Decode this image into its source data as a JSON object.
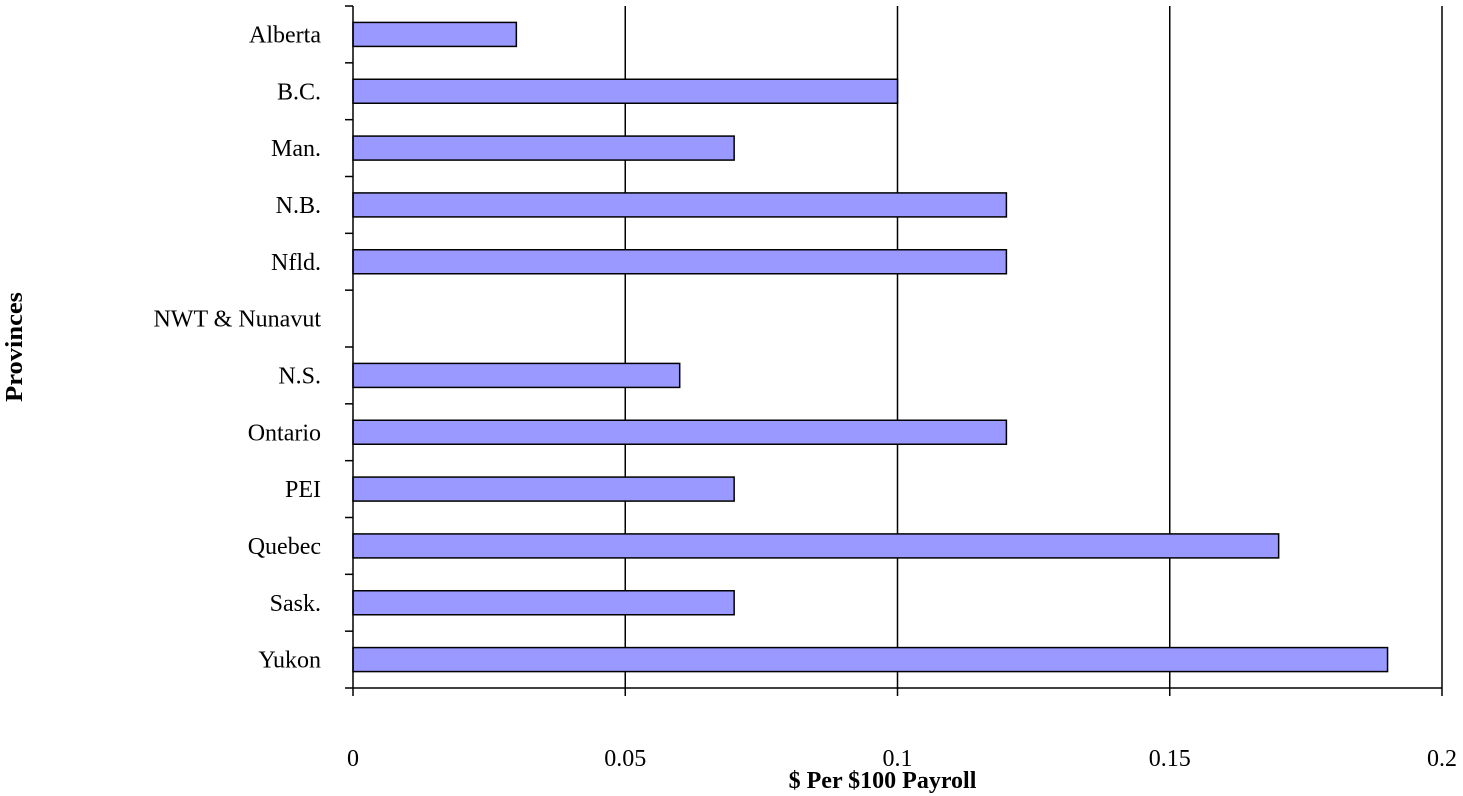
{
  "chart_data": {
    "type": "bar",
    "orientation": "horizontal",
    "categories": [
      "Alberta",
      "B.C.",
      "Man.",
      "N.B.",
      "Nfld.",
      "NWT & Nunavut",
      "N.S.",
      "Ontario",
      "PEI",
      "Quebec",
      "Sask.",
      "Yukon"
    ],
    "values": [
      0.03,
      0.1,
      0.07,
      0.12,
      0.12,
      null,
      0.06,
      0.12,
      0.07,
      0.17,
      0.07,
      0.19
    ],
    "xlabel": "$ Per $100 Payroll",
    "ylabel": "Provinces",
    "xlim": [
      0,
      0.2
    ],
    "xticks": [
      0,
      0.05,
      0.1,
      0.15,
      0.2
    ],
    "xtick_labels": [
      "0",
      "0.05",
      "0.1",
      "0.15",
      "0.2"
    ],
    "grid": "vertical major gridlines",
    "bar_color": "#9999ff",
    "bar_edge_color": "#000000"
  }
}
